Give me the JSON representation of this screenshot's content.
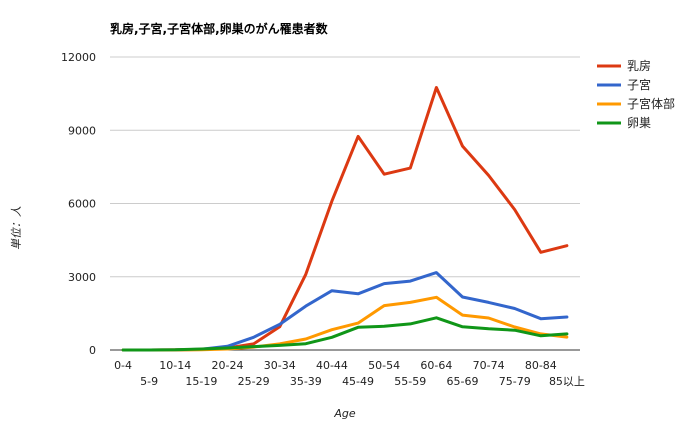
{
  "chart_data": {
    "type": "line",
    "title": "乳房,子宮,子宮体部,卵巣のがん罹患者数",
    "xlabel": "Age",
    "ylabel": "単位：人",
    "ylim": [
      0,
      12000
    ],
    "yticks": [
      "0",
      "3000",
      "6000",
      "9000",
      "12000"
    ],
    "grid": true,
    "legend_position": "right",
    "categories": [
      "0-4",
      "5-9",
      "10-14",
      "15-19",
      "20-24",
      "25-29",
      "30-34",
      "35-39",
      "40-44",
      "45-49",
      "50-54",
      "55-59",
      "60-64",
      "65-69",
      "70-74",
      "75-79",
      "80-84",
      "85以上"
    ],
    "series": [
      {
        "name": "乳房",
        "color": "#dc3912",
        "values": [
          0,
          0,
          5,
          20,
          80,
          250,
          950,
          3100,
          6100,
          8750,
          7200,
          7450,
          10750,
          8350,
          7150,
          5750,
          4000,
          4270
        ]
      },
      {
        "name": "子宮",
        "color": "#3366cc",
        "values": [
          0,
          0,
          5,
          30,
          150,
          520,
          1050,
          1800,
          2430,
          2300,
          2720,
          2820,
          3170,
          2170,
          1950,
          1700,
          1280,
          1350
        ]
      },
      {
        "name": "子宮体部",
        "color": "#ff9900",
        "values": [
          0,
          0,
          5,
          10,
          40,
          120,
          250,
          450,
          830,
          1100,
          1820,
          1950,
          2160,
          1430,
          1310,
          940,
          660,
          530
        ]
      },
      {
        "name": "卵巣",
        "color": "#109618",
        "values": [
          0,
          0,
          10,
          40,
          80,
          140,
          190,
          260,
          520,
          930,
          970,
          1070,
          1320,
          950,
          870,
          810,
          580,
          660
        ]
      }
    ]
  }
}
